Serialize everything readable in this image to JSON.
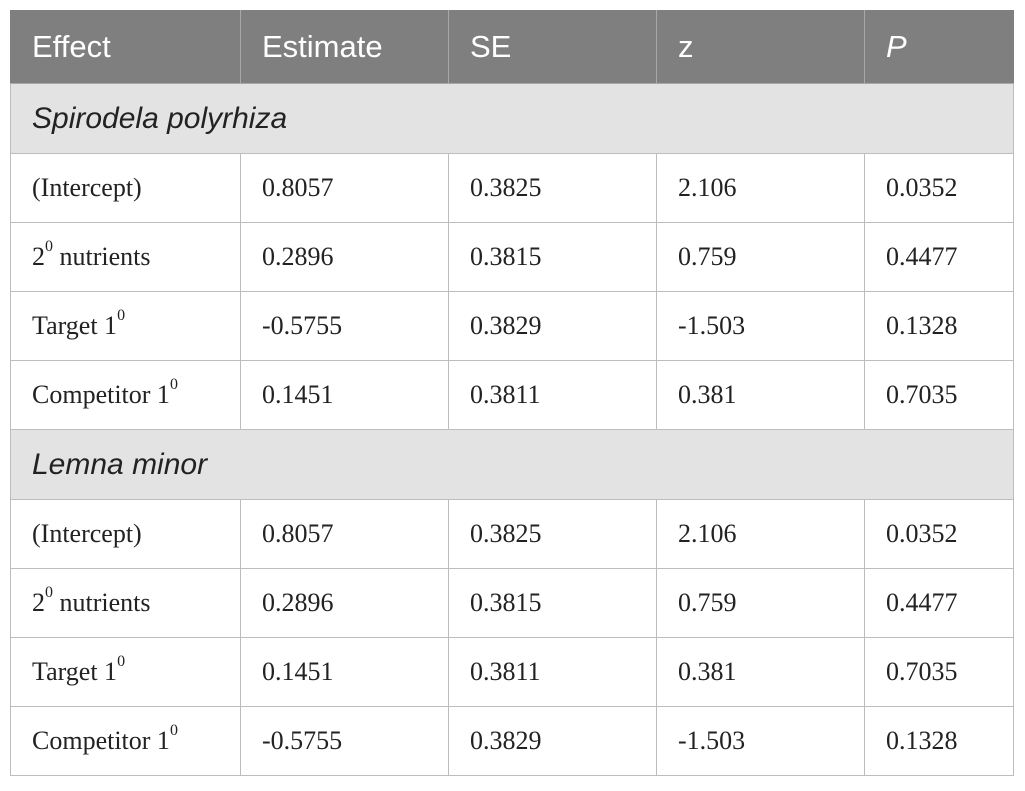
{
  "table": {
    "headers": [
      "Effect",
      "Estimate",
      "SE",
      "z",
      "P"
    ],
    "groups": [
      {
        "species": "Spirodela polyrhiza",
        "rows": [
          {
            "effect": "(Intercept)",
            "sup": "",
            "estimate": "0.8057",
            "se": "0.3825",
            "z": "2.106",
            "p": "0.0352"
          },
          {
            "effect": "2",
            "sup": "0",
            "suffix": " nutrients",
            "estimate": "0.2896",
            "se": "0.3815",
            "z": "0.759",
            "p": "0.4477"
          },
          {
            "effect": "Target 1",
            "sup": "0",
            "estimate": "-0.5755",
            "se": "0.3829",
            "z": "-1.503",
            "p": "0.1328"
          },
          {
            "effect": "Competitor 1",
            "sup": "0",
            "estimate": "0.1451",
            "se": "0.3811",
            "z": "0.381",
            "p": "0.7035"
          }
        ]
      },
      {
        "species": "Lemna minor",
        "rows": [
          {
            "effect": "(Intercept)",
            "sup": "",
            "estimate": "0.8057",
            "se": "0.3825",
            "z": "2.106",
            "p": "0.0352"
          },
          {
            "effect": "2",
            "sup": "0",
            "suffix": " nutrients",
            "estimate": "0.2896",
            "se": "0.3815",
            "z": "0.759",
            "p": "0.4477"
          },
          {
            "effect": "Target 1",
            "sup": "0",
            "estimate": "0.1451",
            "se": "0.3811",
            "z": "0.381",
            "p": "0.7035"
          },
          {
            "effect": "Competitor 1",
            "sup": "0",
            "estimate": "-0.5755",
            "se": "0.3829",
            "z": "-1.503",
            "p": "0.1328"
          }
        ]
      }
    ]
  }
}
